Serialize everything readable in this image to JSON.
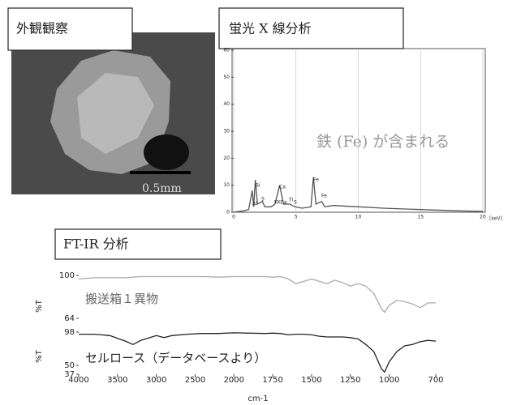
{
  "panels": {
    "appearance": {
      "title": "外観観察",
      "scale_label": "0.5mm"
    }
  },
  "chart_data": [
    {
      "type": "line",
      "title": "蛍光 X 線分析",
      "annotation": "鉄 (Fe) が含まれる",
      "x_unit": "[keV]",
      "peak_labels": [
        "Al",
        "Si",
        "S",
        "Ca",
        "KKCa",
        "Ti",
        "S",
        "Fe",
        "Fe"
      ],
      "x": [
        0,
        0.8,
        1.2,
        1.49,
        1.6,
        1.74,
        1.9,
        2.3,
        2.5,
        3.0,
        3.31,
        3.69,
        4.0,
        4.51,
        4.9,
        5.5,
        6.2,
        6.4,
        6.6,
        7.06,
        7.3,
        8,
        10,
        12,
        15,
        18,
        20
      ],
      "series": [
        {
          "color": "#555",
          "values": [
            0,
            0.5,
            1,
            8,
            2,
            12,
            3,
            4,
            2,
            2,
            3,
            10,
            3,
            3,
            2,
            1.5,
            2,
            13,
            3,
            4,
            2,
            2.5,
            2,
            1.5,
            1,
            0.5,
            0.3
          ]
        }
      ],
      "xlim": [
        0,
        20
      ],
      "ylim": [
        0,
        60
      ],
      "xticks": [
        0,
        5,
        10,
        15,
        20
      ],
      "yticks": [
        0,
        10,
        20,
        30,
        40,
        50,
        60
      ],
      "grid": true
    },
    {
      "type": "line",
      "title": "FT-IR 分析",
      "xlabel": "cm-1",
      "ylabel": "%T",
      "x": [
        4000,
        3800,
        3600,
        3400,
        3300,
        3200,
        3000,
        2900,
        2800,
        2600,
        2400,
        2200,
        2000,
        1800,
        1750,
        1700,
        1650,
        1600,
        1550,
        1500,
        1450,
        1400,
        1350,
        1300,
        1250,
        1200,
        1150,
        1100,
        1050,
        1030,
        1000,
        950,
        900,
        850,
        800,
        750,
        700
      ],
      "series": [
        {
          "name": "搬送箱１異物",
          "color": "#aaaaaa",
          "values": [
            97,
            98,
            98,
            98,
            98.5,
            99,
            99,
            99,
            99,
            99,
            99,
            98.5,
            99,
            99,
            98.5,
            99,
            97,
            93,
            95,
            97,
            95,
            93,
            96,
            94,
            91,
            93,
            91,
            85,
            72,
            69,
            75,
            79,
            78,
            76,
            73,
            77,
            77
          ]
        },
        {
          "name": "セルロース（データベースより）",
          "color": "#222222",
          "axis": "y2",
          "values": [
            95,
            95,
            93,
            85,
            80,
            86,
            93,
            90,
            93,
            95,
            96,
            96,
            97,
            96,
            96.5,
            96,
            94,
            95,
            95,
            94,
            92,
            91,
            91,
            91,
            90,
            88,
            80,
            70,
            45,
            40,
            55,
            70,
            78,
            80,
            84,
            86,
            85
          ]
        }
      ],
      "xlim": [
        4000,
        700
      ],
      "ylim": [
        64,
        100
      ],
      "yticks": [
        64,
        100
      ],
      "y2lim": [
        37,
        98
      ],
      "y2ticks": [
        37,
        50,
        98
      ],
      "xticks": [
        4000,
        3500,
        3000,
        2500,
        2000,
        1750,
        1500,
        1250,
        1000,
        700
      ],
      "grid": false
    }
  ]
}
